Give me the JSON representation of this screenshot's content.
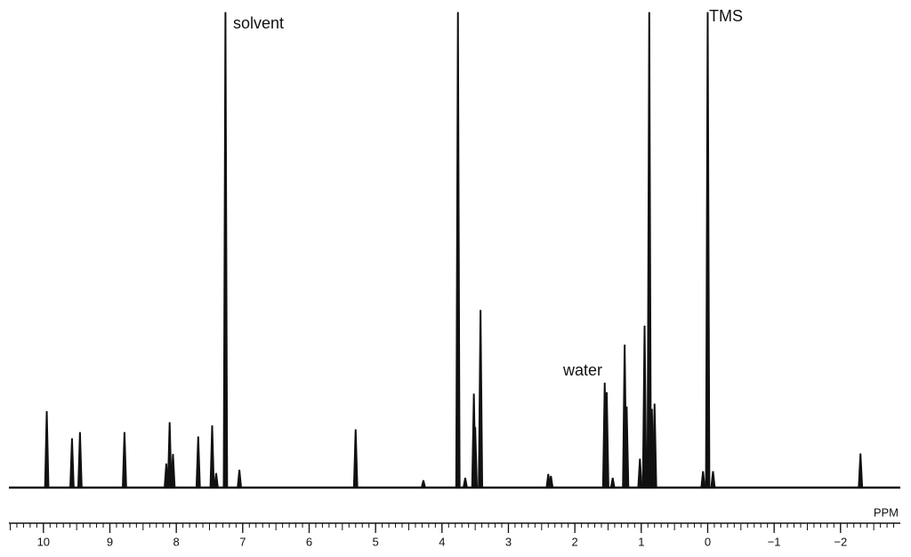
{
  "chart_data": {
    "type": "spectrum",
    "xlabel": "PPM",
    "xlim": [
      10.52,
      -2.9
    ],
    "ylim": [
      0,
      100
    ],
    "xticks": [
      10,
      9,
      8,
      7,
      6,
      5,
      4,
      3,
      2,
      1,
      0,
      {
        "value": -1,
        "label": "−1"
      },
      {
        "value": -2,
        "label": "−2"
      }
    ],
    "minor_tick_interval": 0.1,
    "color": "#111111",
    "annotations": [
      "solvent",
      "TMS",
      "water"
    ],
    "x": [
      9.95,
      9.57,
      9.45,
      8.78,
      8.15,
      8.1,
      8.05,
      7.67,
      7.46,
      7.4,
      7.26,
      7.05,
      5.3,
      4.28,
      3.76,
      3.65,
      3.52,
      3.5,
      3.42,
      2.4,
      2.36,
      1.55,
      1.52,
      1.43,
      1.25,
      1.22,
      1.02,
      0.95,
      0.88,
      0.84,
      0.8,
      0.07,
      0,
      -0.08,
      -2.3
    ],
    "values": [
      16,
      10.3,
      11.6,
      11.6,
      5,
      13.7,
      7,
      10.7,
      13,
      3,
      100,
      3.7,
      12.2,
      1.5,
      100,
      2,
      19.7,
      12.7,
      37.3,
      2.8,
      2.4,
      22,
      20,
      2,
      30,
      17,
      6,
      34,
      100,
      16.5,
      17.6,
      3.4,
      100,
      3.4,
      7.1
    ]
  }
}
